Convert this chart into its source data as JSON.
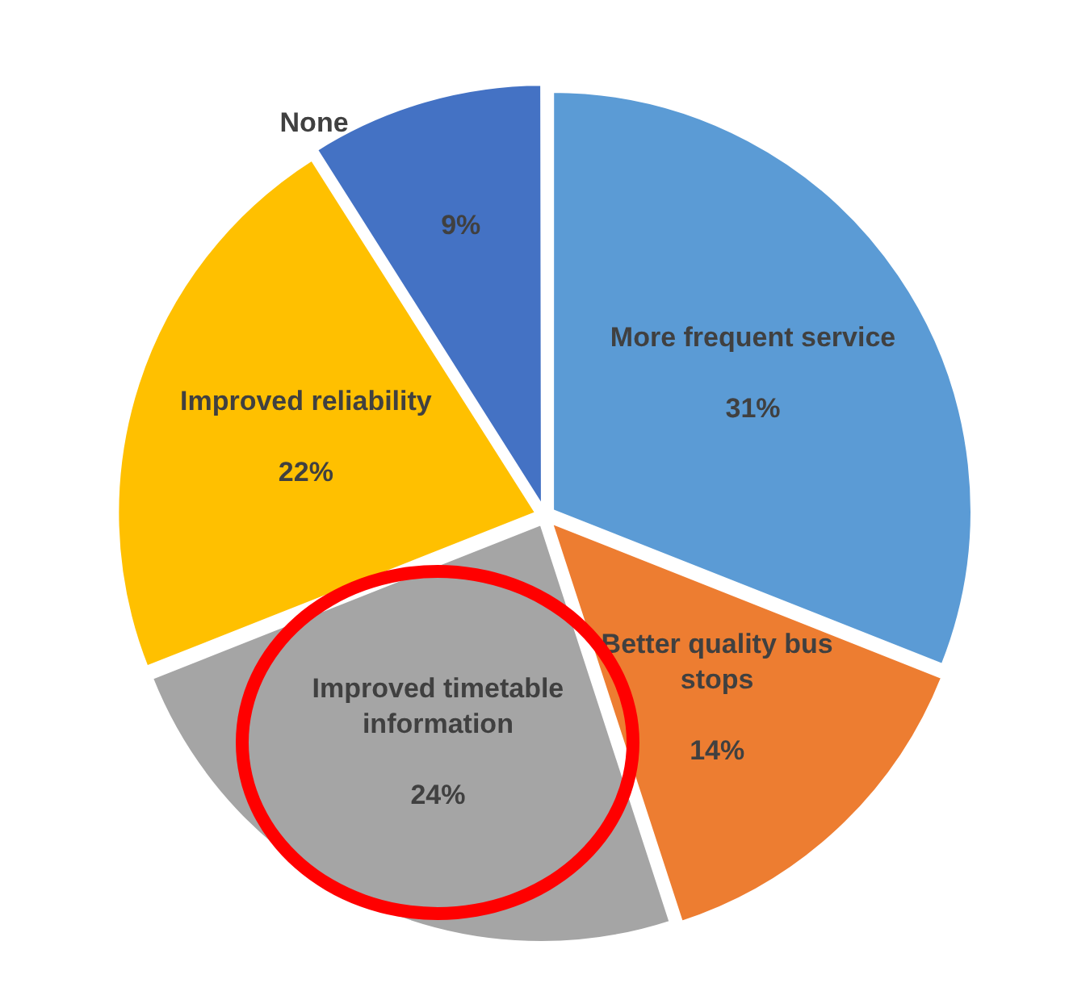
{
  "chart_data": {
    "type": "pie",
    "categories": [
      "More frequent service",
      "Better quality bus stops",
      "Improved timetable information",
      "Improved reliability",
      "None"
    ],
    "values": [
      31,
      14,
      24,
      22,
      9
    ],
    "colors": [
      "#5b9bd5",
      "#ed7d31",
      "#a5a5a5",
      "#ffc000",
      "#4472c4"
    ],
    "value_labels": [
      "31%",
      "14%",
      "24%",
      "22%",
      "9%"
    ],
    "legend": false
  }
}
